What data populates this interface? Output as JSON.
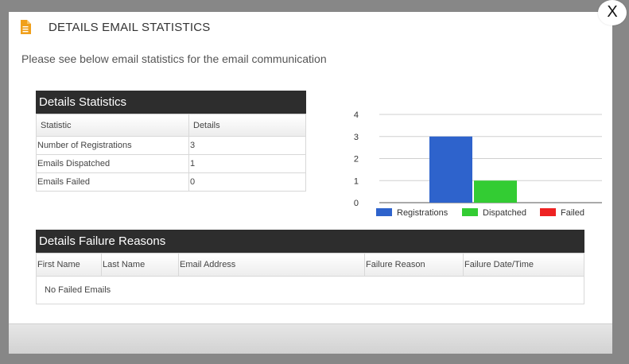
{
  "modal": {
    "title": "DETAILS EMAIL STATISTICS",
    "subtitle": "Please see below email statistics for the email communication",
    "close_label": "X",
    "icon": "document-icon",
    "icon_color": "#f0a01c"
  },
  "stats_panel": {
    "title": "Details Statistics",
    "headers": [
      "Statistic",
      "Details"
    ],
    "rows": [
      {
        "label": "Number of Registrations",
        "value": "3"
      },
      {
        "label": "Emails Dispatched",
        "value": "1"
      },
      {
        "label": "Emails Failed",
        "value": "0"
      }
    ]
  },
  "failure_panel": {
    "title": "Details Failure Reasons",
    "headers": [
      "First Name",
      "Last Name",
      "Email Address",
      "Failure Reason",
      "Failure Date/Time"
    ],
    "empty_message": "No Failed Emails"
  },
  "chart_data": {
    "type": "bar",
    "categories": [
      "Registrations",
      "Dispatched",
      "Failed"
    ],
    "values": [
      3,
      1,
      0
    ],
    "colors": [
      "#2e63cc",
      "#33cc33",
      "#ee2222"
    ],
    "ylim": [
      0,
      4
    ],
    "yticks": [
      0,
      1,
      2,
      3,
      4
    ],
    "grid": true,
    "legend": "bottom"
  }
}
